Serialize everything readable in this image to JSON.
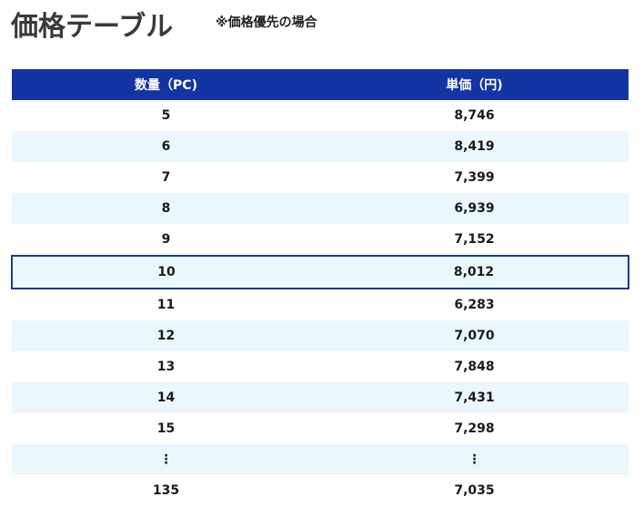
{
  "page": {
    "title": "価格テーブル",
    "note": "※価格優先の場合"
  },
  "table": {
    "headers": {
      "quantity": "数量（PC)",
      "unit_price": "単価（円)"
    },
    "rows": [
      {
        "quantity": "5",
        "unit_price": "8,746"
      },
      {
        "quantity": "6",
        "unit_price": "8,419"
      },
      {
        "quantity": "7",
        "unit_price": "7,399"
      },
      {
        "quantity": "8",
        "unit_price": "6,939"
      },
      {
        "quantity": "9",
        "unit_price": "7,152"
      },
      {
        "quantity": "10",
        "unit_price": "8,012",
        "highlighted": true
      },
      {
        "quantity": "11",
        "unit_price": "6,283"
      },
      {
        "quantity": "12",
        "unit_price": "7,070"
      },
      {
        "quantity": "13",
        "unit_price": "7,848"
      },
      {
        "quantity": "14",
        "unit_price": "7,431"
      },
      {
        "quantity": "15",
        "unit_price": "7,298"
      },
      {
        "quantity": "⋮",
        "unit_price": "⋮"
      },
      {
        "quantity": "135",
        "unit_price": "7,035"
      }
    ]
  },
  "colors": {
    "header_bg": "#1434a4",
    "stripe_bg": "#eaf8fd",
    "highlight_border": "#1b3a8f"
  }
}
